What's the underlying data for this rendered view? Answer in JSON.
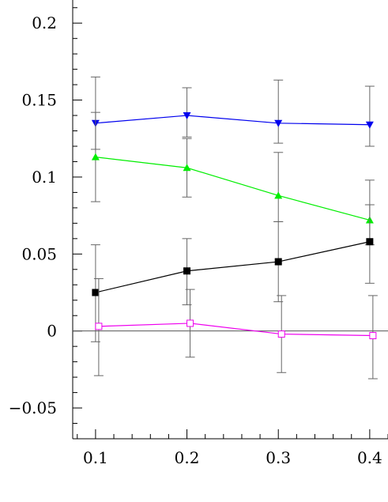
{
  "chart_data": {
    "type": "line",
    "title": "",
    "xlabel": "",
    "ylabel": "",
    "xlim": [
      0.075,
      0.42
    ],
    "ylim": [
      -0.07,
      0.215
    ],
    "x_ticks": [
      0.1,
      0.2,
      0.3,
      0.4
    ],
    "x_tick_labels": [
      "0.1",
      "0.2",
      "0.3",
      "0.4"
    ],
    "y_ticks": [
      -0.05,
      0,
      0.05,
      0.1,
      0.15,
      0.2
    ],
    "y_tick_labels": [
      "−0.05",
      "0",
      "0.05",
      "0.1",
      "0.15",
      "0.2"
    ],
    "zero_line": true,
    "grid": false,
    "series": [
      {
        "color": "#0000ee",
        "marker": "triangle-down-filled",
        "x": [
          0.1,
          0.2,
          0.3,
          0.4
        ],
        "y": [
          0.135,
          0.14,
          0.135,
          0.134
        ],
        "err_low": [
          0.017,
          0.014,
          0.013,
          0.014
        ],
        "err_high": [
          0.03,
          0.018,
          0.028,
          0.025
        ]
      },
      {
        "color": "#00ee00",
        "marker": "triangle-up-filled",
        "x": [
          0.1,
          0.2,
          0.3,
          0.4
        ],
        "y": [
          0.113,
          0.106,
          0.088,
          0.072
        ],
        "err_low": [
          0.029,
          0.019,
          0.017,
          0.016
        ],
        "err_high": [
          0.029,
          0.019,
          0.028,
          0.026
        ]
      },
      {
        "color": "#000000",
        "marker": "square-filled",
        "x": [
          0.1,
          0.2,
          0.3,
          0.4
        ],
        "y": [
          0.025,
          0.039,
          0.045,
          0.058
        ],
        "err_low": [
          0.032,
          0.022,
          0.026,
          0.027
        ],
        "err_high": [
          0.031,
          0.021,
          0.026,
          0.024
        ]
      },
      {
        "color": "#ee00ee",
        "marker": "square-open",
        "x": [
          0.1,
          0.2,
          0.3,
          0.4
        ],
        "y": [
          0.003,
          0.005,
          -0.002,
          -0.003
        ],
        "err_low": [
          0.032,
          0.022,
          0.025,
          0.028
        ],
        "err_high": [
          0.031,
          0.022,
          0.025,
          0.026
        ]
      }
    ]
  }
}
